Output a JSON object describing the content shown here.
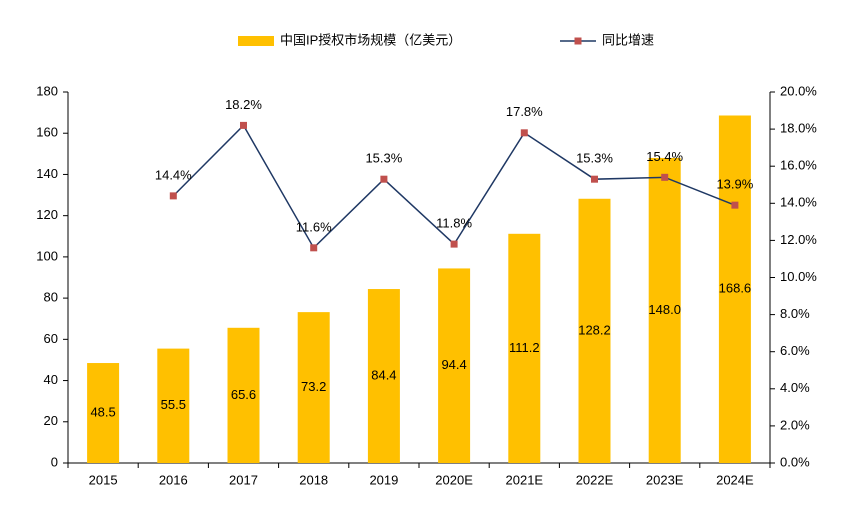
{
  "chart_data": {
    "type": "combo",
    "categories": [
      "2015",
      "2016",
      "2017",
      "2018",
      "2019",
      "2020E",
      "2021E",
      "2022E",
      "2023E",
      "2024E"
    ],
    "series": [
      {
        "name": "中国IP授权市场规模（亿美元）",
        "color": "#FFC000",
        "type": "bar",
        "values": [
          48.5,
          55.5,
          65.6,
          73.2,
          84.4,
          94.4,
          111.2,
          128.2,
          148,
          168.6
        ],
        "value_labels": [
          "48.5",
          "55.5",
          "65.6",
          "73.2",
          "84.4",
          "94.4",
          "111.2",
          "128.2",
          "148.0",
          "168.6"
        ]
      },
      {
        "name": "同比增速",
        "color": "#1F3864",
        "marker_color": "#C0504D",
        "type": "line",
        "axis": "y2",
        "values": [
          null,
          14.4,
          18.2,
          11.6,
          15.3,
          11.8,
          17.8,
          15.3,
          15.4,
          13.9
        ],
        "value_labels": [
          null,
          "14.4%",
          "18.2%",
          "11.6%",
          "15.3%",
          "11.8%",
          "17.8%",
          "15.3%",
          "15.4%",
          "13.9%"
        ]
      }
    ],
    "ylim": [
      0,
      180
    ],
    "yticks": [
      0,
      20,
      40,
      60,
      80,
      100,
      120,
      140,
      160,
      180
    ],
    "y2lim": [
      0,
      20
    ],
    "y2ticks": [
      {
        "value": 0,
        "label": "0.0%"
      },
      {
        "value": 2,
        "label": "2.0%"
      },
      {
        "value": 4,
        "label": "4.0%"
      },
      {
        "value": 6,
        "label": "6.0%"
      },
      {
        "value": 8,
        "label": "8.0%"
      },
      {
        "value": 10,
        "label": "10.0%"
      },
      {
        "value": 12,
        "label": "12.0%"
      },
      {
        "value": 14,
        "label": "14.0%"
      },
      {
        "value": 16,
        "label": "16.0%"
      },
      {
        "value": 18,
        "label": "18.0%"
      },
      {
        "value": 20,
        "label": "20.0%"
      }
    ],
    "legend": "top"
  }
}
